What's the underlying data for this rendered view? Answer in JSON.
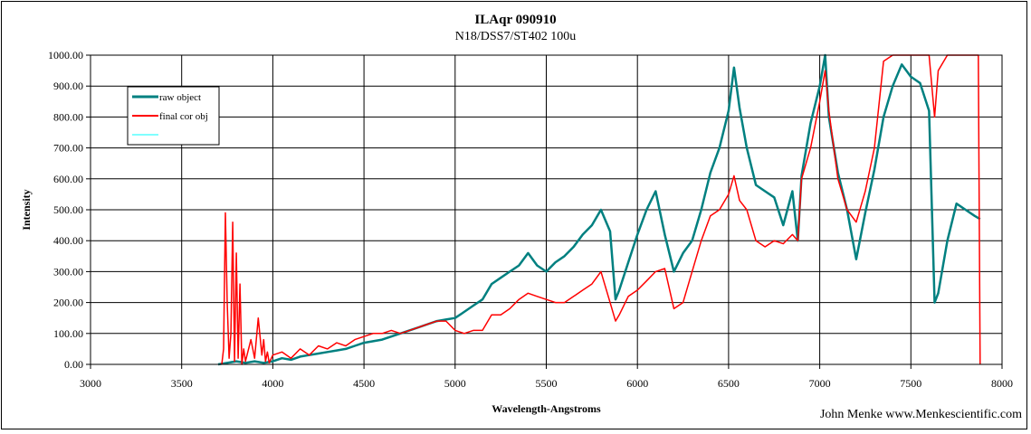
{
  "chart_data": {
    "type": "line",
    "title": "ILAqr 090910",
    "subtitle": "N18/DSS7/ST402  100u",
    "xlabel": "Wavelength-Angstroms",
    "ylabel": "Intensity",
    "xlim": [
      3000,
      8000
    ],
    "ylim": [
      0,
      1000
    ],
    "x_ticks": [
      "3000",
      "3500",
      "4000",
      "4500",
      "5000",
      "5500",
      "6000",
      "6500",
      "7000",
      "7500",
      "8000"
    ],
    "y_ticks": [
      "0.00",
      "100.00",
      "200.00",
      "300.00",
      "400.00",
      "500.00",
      "600.00",
      "700.00",
      "800.00",
      "900.00",
      "1000.00"
    ],
    "grid": true,
    "legend_position": "top-left",
    "series": [
      {
        "name": "raw object",
        "color": "#008080",
        "x": [
          3700,
          3750,
          3800,
          3850,
          3900,
          3950,
          4000,
          4050,
          4100,
          4150,
          4200,
          4250,
          4300,
          4350,
          4400,
          4450,
          4500,
          4550,
          4600,
          4650,
          4700,
          4750,
          4800,
          4850,
          4900,
          4950,
          5000,
          5050,
          5100,
          5150,
          5200,
          5250,
          5300,
          5350,
          5400,
          5450,
          5500,
          5550,
          5600,
          5650,
          5700,
          5750,
          5800,
          5850,
          5880,
          5900,
          5950,
          6000,
          6050,
          6100,
          6150,
          6200,
          6250,
          6300,
          6350,
          6400,
          6450,
          6500,
          6530,
          6560,
          6600,
          6650,
          6700,
          6750,
          6800,
          6850,
          6880,
          6900,
          6950,
          7000,
          7030,
          7050,
          7100,
          7150,
          7200,
          7250,
          7300,
          7350,
          7400,
          7450,
          7500,
          7550,
          7600,
          7630,
          7650,
          7700,
          7750,
          7800,
          7850,
          7880
        ],
        "y": [
          0,
          5,
          10,
          5,
          10,
          5,
          10,
          20,
          15,
          25,
          30,
          35,
          40,
          45,
          50,
          60,
          70,
          75,
          80,
          90,
          100,
          110,
          120,
          130,
          140,
          145,
          150,
          170,
          190,
          210,
          260,
          280,
          300,
          320,
          360,
          320,
          300,
          330,
          350,
          380,
          420,
          450,
          500,
          430,
          210,
          240,
          330,
          420,
          500,
          560,
          420,
          300,
          360,
          400,
          500,
          620,
          700,
          820,
          960,
          830,
          700,
          580,
          560,
          540,
          450,
          560,
          400,
          610,
          780,
          900,
          1000,
          800,
          620,
          500,
          340,
          490,
          630,
          800,
          900,
          970,
          930,
          910,
          820,
          200,
          230,
          400,
          520,
          500,
          480,
          470
        ]
      },
      {
        "name": "final cor obj",
        "color": "#ff0000",
        "x": [
          3720,
          3730,
          3740,
          3750,
          3760,
          3770,
          3780,
          3790,
          3800,
          3810,
          3820,
          3830,
          3840,
          3850,
          3880,
          3900,
          3920,
          3940,
          3950,
          3960,
          3970,
          3980,
          4000,
          4050,
          4100,
          4150,
          4200,
          4250,
          4300,
          4350,
          4400,
          4450,
          4500,
          4550,
          4600,
          4650,
          4700,
          4750,
          4800,
          4850,
          4900,
          4950,
          5000,
          5050,
          5100,
          5150,
          5200,
          5250,
          5300,
          5350,
          5400,
          5450,
          5500,
          5550,
          5600,
          5650,
          5700,
          5750,
          5800,
          5850,
          5880,
          5900,
          5950,
          6000,
          6050,
          6100,
          6150,
          6200,
          6250,
          6300,
          6350,
          6400,
          6450,
          6500,
          6530,
          6560,
          6600,
          6650,
          6700,
          6750,
          6800,
          6850,
          6880,
          6900,
          6950,
          7000,
          7030,
          7050,
          7100,
          7150,
          7200,
          7250,
          7300,
          7350,
          7400,
          7450,
          7500,
          7550,
          7600,
          7630,
          7650,
          7700,
          7750,
          7800,
          7850,
          7870,
          7880
        ],
        "y": [
          0,
          50,
          490,
          200,
          20,
          100,
          460,
          10,
          360,
          20,
          260,
          0,
          50,
          10,
          80,
          20,
          150,
          30,
          80,
          10,
          40,
          5,
          30,
          40,
          20,
          50,
          30,
          60,
          50,
          70,
          60,
          80,
          90,
          100,
          100,
          110,
          100,
          110,
          120,
          130,
          140,
          140,
          110,
          100,
          110,
          110,
          160,
          160,
          180,
          210,
          230,
          220,
          210,
          200,
          200,
          220,
          240,
          260,
          300,
          200,
          140,
          160,
          220,
          240,
          270,
          300,
          310,
          180,
          200,
          300,
          400,
          480,
          500,
          550,
          610,
          530,
          500,
          400,
          380,
          400,
          390,
          420,
          400,
          600,
          700,
          850,
          950,
          820,
          600,
          500,
          460,
          560,
          700,
          980,
          1000,
          1000,
          1000,
          1000,
          1000,
          800,
          950,
          1000,
          1000,
          1000,
          1000,
          1000,
          0
        ]
      },
      {
        "name": "",
        "color": "#00ffff",
        "x": [],
        "y": []
      }
    ]
  },
  "credit": "John Menke www.Menkescientific.com"
}
